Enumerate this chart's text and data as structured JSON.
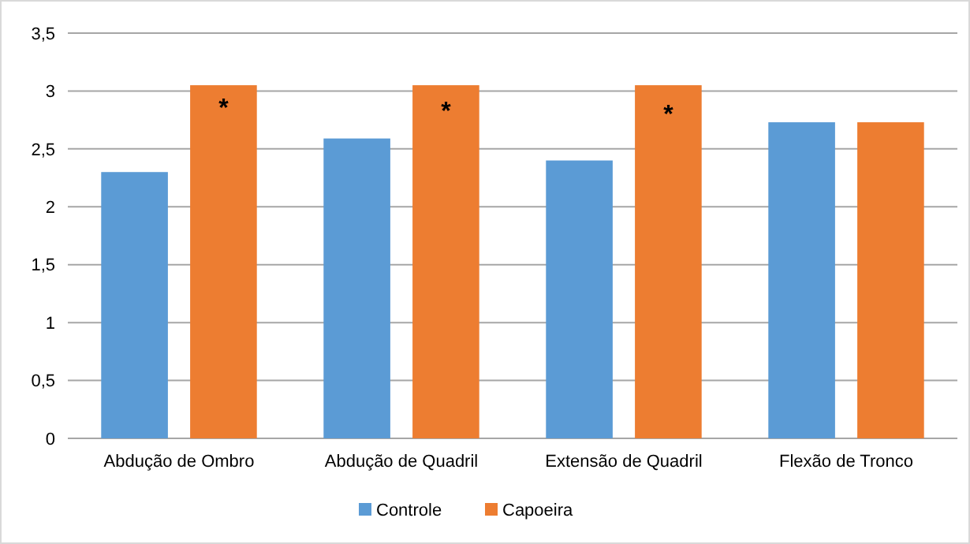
{
  "chart_data": {
    "type": "bar",
    "categories": [
      "Abdução de Ombro",
      "Abdução de Quadril",
      "Extensão de Quadril",
      "Flexão de Tronco"
    ],
    "series": [
      {
        "name": "Controle",
        "color": "#5b9bd5",
        "values": [
          2.3,
          2.59,
          2.4,
          2.73
        ]
      },
      {
        "name": "Capoeira",
        "color": "#ed7d31",
        "values": [
          3.05,
          3.05,
          3.05,
          2.73
        ]
      }
    ],
    "ylim": [
      0,
      3.5
    ],
    "yticks": [
      {
        "value": 0,
        "label": "0"
      },
      {
        "value": 0.5,
        "label": "0,5"
      },
      {
        "value": 1,
        "label": "1"
      },
      {
        "value": 1.5,
        "label": "1,5"
      },
      {
        "value": 2,
        "label": "2"
      },
      {
        "value": 2.5,
        "label": "2,5"
      },
      {
        "value": 3,
        "label": "3"
      },
      {
        "value": 3.5,
        "label": "3,5"
      }
    ],
    "grid": "y",
    "legend": "bottom",
    "annotations": [
      "*",
      "*",
      "*"
    ]
  }
}
